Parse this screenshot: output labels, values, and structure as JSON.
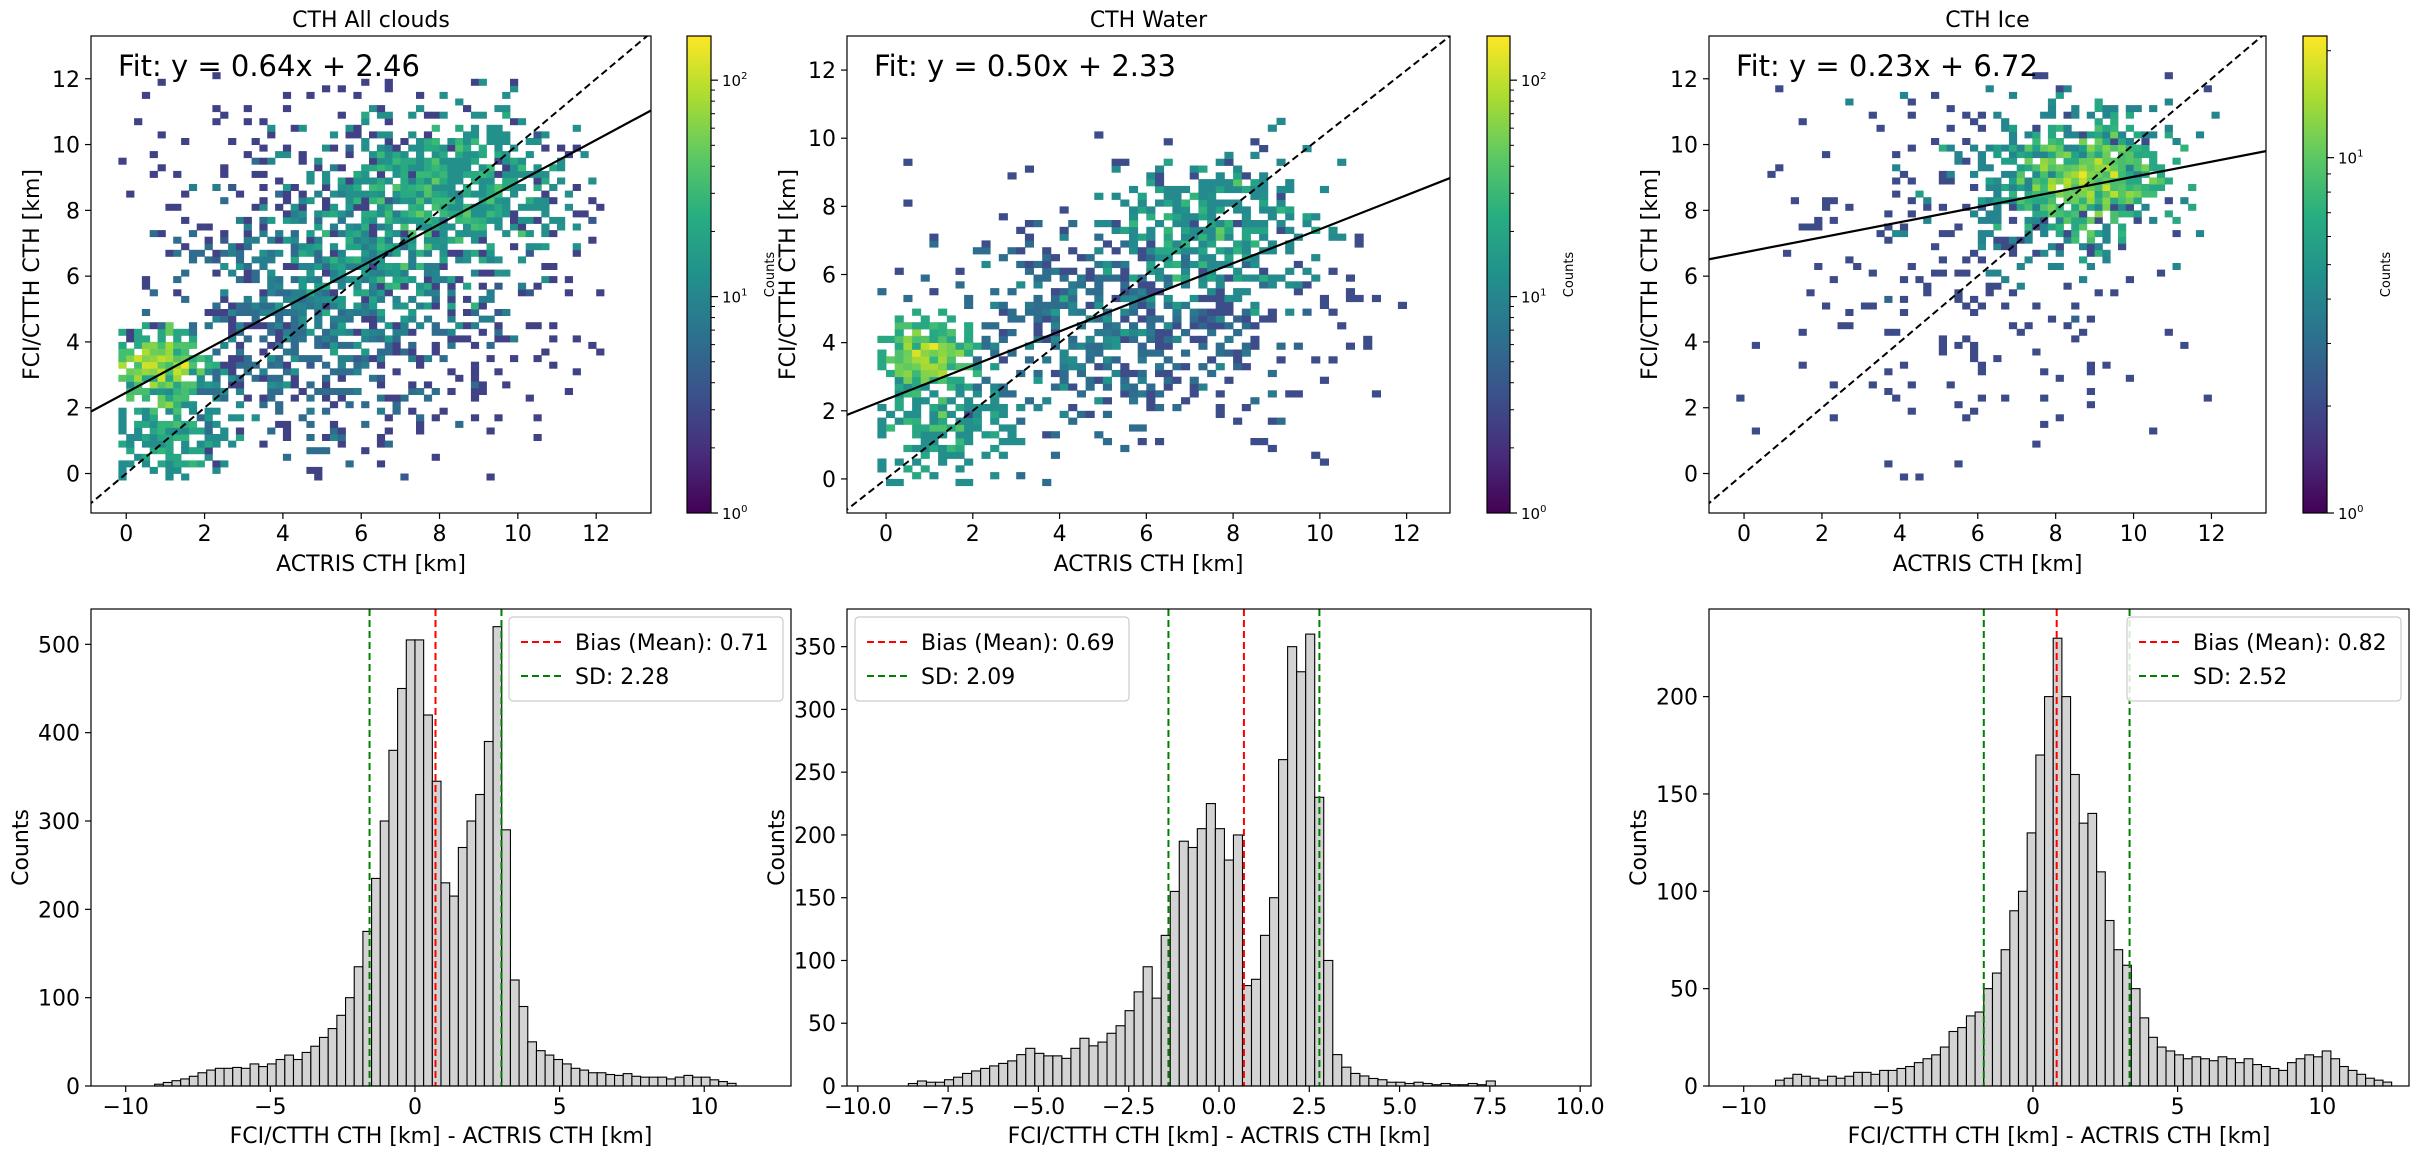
{
  "figure": {
    "background": "#ffffff"
  },
  "chart_data": [
    {
      "type": "heatmap",
      "title": "CTH All clouds",
      "xlabel": "ACTRIS CTH [km]",
      "ylabel": "FCI/CTTH CTH [km]",
      "xlim": [
        -0.9,
        13.4
      ],
      "ylim": [
        -1.2,
        13.3
      ],
      "xticks": [
        0,
        2,
        4,
        6,
        8,
        10,
        12
      ],
      "yticks": [
        0,
        2,
        4,
        6,
        8,
        10,
        12
      ],
      "fit_label": "Fit: y = 0.64x + 2.46",
      "fit": {
        "slope": 0.64,
        "intercept": 2.46
      },
      "colorbar": {
        "label": "Counts",
        "scale": "log",
        "min": 1,
        "max": 160,
        "major_ticks": [
          "10",
          "10",
          "10"
        ],
        "major_exps": [
          "0",
          "1",
          "2"
        ]
      },
      "clusters": [
        {
          "x": 0.8,
          "y": 3.3,
          "sx": 0.6,
          "sy": 0.45,
          "n": 260,
          "w": 1.0
        },
        {
          "x": 1.2,
          "y": 1.5,
          "sx": 0.8,
          "sy": 0.9,
          "n": 220,
          "w": 0.5
        },
        {
          "x": 8.2,
          "y": 8.6,
          "sx": 1.5,
          "sy": 1.2,
          "n": 560,
          "w": 0.55
        },
        {
          "x": 6.0,
          "y": 6.3,
          "sx": 1.6,
          "sy": 1.4,
          "n": 360,
          "w": 0.35
        },
        {
          "x": 4.5,
          "y": 4.3,
          "sx": 2.0,
          "sy": 1.8,
          "n": 320,
          "w": 0.2
        },
        {
          "x": 6.0,
          "y": 6.0,
          "sx": 3.5,
          "sy": 3.6,
          "n": 600,
          "w": 0.06
        }
      ]
    },
    {
      "type": "heatmap",
      "title": "CTH Water",
      "xlabel": "ACTRIS CTH [km]",
      "ylabel": "FCI/CTTH CTH [km]",
      "xlim": [
        -0.9,
        13.0
      ],
      "ylim": [
        -1.0,
        13.0
      ],
      "xticks": [
        0,
        2,
        4,
        6,
        8,
        10,
        12
      ],
      "yticks": [
        0,
        2,
        4,
        6,
        8,
        10,
        12
      ],
      "fit_label": "Fit: y = 0.50x + 2.33",
      "fit": {
        "slope": 0.5,
        "intercept": 2.33
      },
      "colorbar": {
        "label": "Counts",
        "scale": "log",
        "min": 1,
        "max": 160,
        "major_ticks": [
          "10",
          "10",
          "10"
        ],
        "major_exps": [
          "0",
          "1",
          "2"
        ]
      },
      "clusters": [
        {
          "x": 1.0,
          "y": 3.6,
          "sx": 0.5,
          "sy": 0.5,
          "n": 200,
          "w": 1.0
        },
        {
          "x": 1.2,
          "y": 1.6,
          "sx": 0.8,
          "sy": 0.9,
          "n": 180,
          "w": 0.5
        },
        {
          "x": 7.5,
          "y": 7.3,
          "sx": 1.2,
          "sy": 1.0,
          "n": 320,
          "w": 0.45
        },
        {
          "x": 4.5,
          "y": 4.0,
          "sx": 1.8,
          "sy": 1.4,
          "n": 300,
          "w": 0.2
        },
        {
          "x": 6.5,
          "y": 5.0,
          "sx": 2.6,
          "sy": 2.0,
          "n": 320,
          "w": 0.08
        }
      ]
    },
    {
      "type": "heatmap",
      "title": "CTH Ice",
      "xlabel": "ACTRIS CTH [km]",
      "ylabel": "FCI/CTTH CTH [km]",
      "xlim": [
        -0.9,
        13.4
      ],
      "ylim": [
        -1.2,
        13.3
      ],
      "xticks": [
        0,
        2,
        4,
        6,
        8,
        10,
        12
      ],
      "yticks": [
        0,
        2,
        4,
        6,
        8,
        10,
        12
      ],
      "fit_label": "Fit: y = 0.23x + 6.72",
      "fit": {
        "slope": 0.23,
        "intercept": 6.72
      },
      "colorbar": {
        "label": "Counts",
        "scale": "log",
        "min": 1,
        "max": 22,
        "major_ticks": [
          "10",
          "10"
        ],
        "major_exps": [
          "0",
          "1"
        ]
      },
      "clusters": [
        {
          "x": 8.8,
          "y": 8.9,
          "sx": 0.9,
          "sy": 0.8,
          "n": 420,
          "w": 1.0
        },
        {
          "x": 8.0,
          "y": 9.0,
          "sx": 1.6,
          "sy": 1.3,
          "n": 320,
          "w": 0.4
        },
        {
          "x": 6.0,
          "y": 6.5,
          "sx": 3.2,
          "sy": 3.2,
          "n": 260,
          "w": 0.08
        }
      ]
    },
    {
      "type": "bar",
      "xlabel": "FCI/CTTH CTH [km] - ACTRIS CTH [km]",
      "ylabel": "Counts",
      "xlim": [
        -11.2,
        13.0
      ],
      "ylim": [
        0,
        540
      ],
      "xticks": [
        -10,
        -5,
        0,
        5,
        10
      ],
      "xtick_labels": [
        "−10",
        "−5",
        "0",
        "5",
        "10"
      ],
      "yticks": [
        0,
        100,
        200,
        300,
        400,
        500
      ],
      "bin_start": -9.0,
      "bin_width": 0.3,
      "counts": [
        2,
        4,
        6,
        8,
        11,
        15,
        18,
        20,
        20,
        21,
        20,
        25,
        22,
        25,
        30,
        35,
        30,
        38,
        45,
        55,
        65,
        80,
        100,
        135,
        175,
        235,
        300,
        380,
        450,
        505,
        505,
        420,
        345,
        230,
        215,
        270,
        300,
        330,
        390,
        520,
        290,
        120,
        90,
        50,
        40,
        35,
        30,
        25,
        20,
        18,
        15,
        15,
        13,
        12,
        14,
        11,
        10,
        10,
        10,
        8,
        10,
        12,
        10,
        10,
        7,
        5,
        3
      ],
      "vlines": [
        {
          "x": 0.71,
          "color": "#ff0000",
          "legend": "Bias (Mean): 0.71"
        },
        {
          "x": -1.57,
          "color": "#008000",
          "legend": "SD: 2.28"
        },
        {
          "x": 2.99,
          "color": "#008000"
        }
      ],
      "legend_position": "top-right",
      "bar_color": "#d3d3d3"
    },
    {
      "type": "bar",
      "xlabel": "FCI/CTTH CTH [km] - ACTRIS CTH [km]",
      "ylabel": "Counts",
      "xlim": [
        -10.3,
        10.3
      ],
      "ylim": [
        0,
        380
      ],
      "xticks": [
        -10,
        -7.5,
        -5,
        -2.5,
        0,
        2.5,
        5,
        7.5,
        10
      ],
      "xtick_labels": [
        "−10.0",
        "−7.5",
        "−5.0",
        "−2.5",
        "0.0",
        "2.5",
        "5.0",
        "7.5",
        "10.0"
      ],
      "yticks": [
        0,
        50,
        100,
        150,
        200,
        250,
        300,
        350
      ],
      "bin_start": -8.6,
      "bin_width": 0.25,
      "counts": [
        2,
        4,
        3,
        3,
        5,
        7,
        10,
        12,
        14,
        16,
        18,
        20,
        25,
        30,
        26,
        24,
        24,
        22,
        30,
        38,
        32,
        35,
        42,
        48,
        60,
        75,
        95,
        70,
        120,
        155,
        195,
        190,
        205,
        225,
        205,
        180,
        200,
        80,
        85,
        120,
        150,
        260,
        350,
        330,
        360,
        230,
        100,
        25,
        15,
        10,
        8,
        6,
        5,
        3,
        3,
        2,
        3,
        2,
        1,
        2,
        1,
        1,
        2,
        1,
        4
      ],
      "vlines": [
        {
          "x": 0.69,
          "color": "#ff0000",
          "legend": "Bias (Mean): 0.69"
        },
        {
          "x": -1.4,
          "color": "#008000",
          "legend": "SD: 2.09"
        },
        {
          "x": 2.78,
          "color": "#008000"
        }
      ],
      "legend_position": "top-left",
      "bar_color": "#d3d3d3"
    },
    {
      "type": "bar",
      "xlabel": "FCI/CTTH CTH [km] - ACTRIS CTH [km]",
      "ylabel": "Counts",
      "xlim": [
        -11.2,
        13.0
      ],
      "ylim": [
        0,
        245
      ],
      "xticks": [
        -10,
        -5,
        0,
        5,
        10
      ],
      "xtick_labels": [
        "−10",
        "−5",
        "0",
        "5",
        "10"
      ],
      "yticks": [
        0,
        50,
        100,
        150,
        200
      ],
      "bin_start": -8.9,
      "bin_width": 0.3,
      "counts": [
        3,
        4,
        6,
        5,
        4,
        3,
        5,
        4,
        5,
        7,
        7,
        6,
        8,
        8,
        9,
        10,
        12,
        14,
        16,
        20,
        28,
        30,
        36,
        38,
        50,
        58,
        70,
        90,
        100,
        130,
        170,
        200,
        230,
        200,
        160,
        135,
        140,
        110,
        85,
        70,
        62,
        50,
        35,
        25,
        20,
        18,
        16,
        14,
        15,
        14,
        13,
        15,
        14,
        12,
        14,
        11,
        10,
        9,
        8,
        12,
        14,
        16,
        15,
        18,
        14,
        10,
        8,
        6,
        4,
        3,
        2
      ],
      "vlines": [
        {
          "x": 0.82,
          "color": "#ff0000",
          "legend": "Bias (Mean): 0.82"
        },
        {
          "x": -1.7,
          "color": "#008000",
          "legend": "SD: 2.52"
        },
        {
          "x": 3.34,
          "color": "#008000"
        }
      ],
      "legend_position": "top-right",
      "bar_color": "#d3d3d3"
    }
  ]
}
